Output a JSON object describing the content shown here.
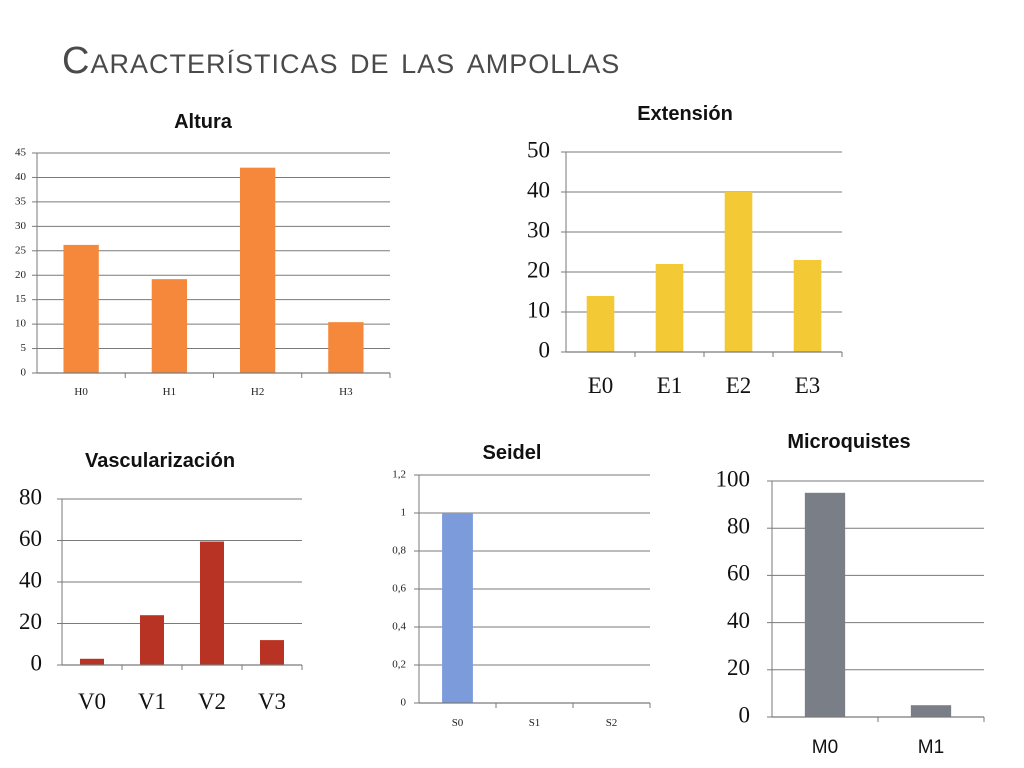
{
  "slide": {
    "title": "Características de las ampollas"
  },
  "chart_data": [
    {
      "id": "altura",
      "type": "bar",
      "title": "Altura",
      "categories": [
        "H0",
        "H1",
        "H2",
        "H3"
      ],
      "values": [
        26.2,
        19.2,
        42,
        10.4
      ],
      "ylim": [
        0,
        45
      ],
      "yticks": [
        "0",
        "5",
        "10",
        "15",
        "20",
        "25",
        "30",
        "35",
        "40",
        "45"
      ],
      "grid": true,
      "color": "#F5883A"
    },
    {
      "id": "extension",
      "type": "bar",
      "title": "Extensión",
      "categories": [
        "E0",
        "E1",
        "E2",
        "E3"
      ],
      "values": [
        14,
        22,
        40,
        23
      ],
      "ylim": [
        0,
        50
      ],
      "yticks": [
        "0",
        "10",
        "20",
        "30",
        "40",
        "50"
      ],
      "grid": true,
      "color": "#F3C935"
    },
    {
      "id": "vascularizacion",
      "type": "bar",
      "title": "Vascularización",
      "categories": [
        "V0",
        "V1",
        "V2",
        "V3"
      ],
      "values": [
        3,
        24,
        59.5,
        12
      ],
      "ylim": [
        0,
        80
      ],
      "yticks": [
        "0",
        "20",
        "40",
        "60",
        "80"
      ],
      "grid": true,
      "color": "#B83323"
    },
    {
      "id": "seidel",
      "type": "bar",
      "title": "Seidel",
      "categories": [
        "S0",
        "S1",
        "S2"
      ],
      "values": [
        1,
        0,
        0
      ],
      "ylim": [
        0,
        1.2
      ],
      "yticks": [
        "0",
        "0,2",
        "0,4",
        "0,6",
        "0,8",
        "1",
        "1,2"
      ],
      "grid": true,
      "color": "#7B9BDA"
    },
    {
      "id": "microquistes",
      "type": "bar",
      "title": "Microquistes",
      "categories": [
        "M0",
        "M1"
      ],
      "values": [
        95,
        5
      ],
      "ylim": [
        0,
        100
      ],
      "yticks": [
        "0",
        "20",
        "40",
        "60",
        "80",
        "100"
      ],
      "grid": true,
      "color": "#7A7E86"
    }
  ]
}
